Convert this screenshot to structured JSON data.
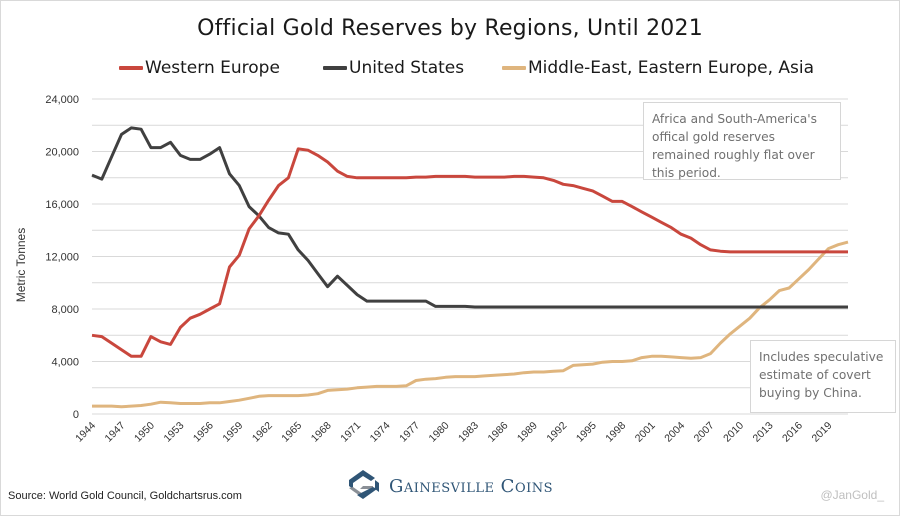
{
  "chart_data": {
    "type": "line",
    "title": "Official Gold Reserves by Regions, Until 2021",
    "xlabel": "",
    "ylabel": "Metric Tonnes",
    "ylim": [
      0,
      24000
    ],
    "yticks": [
      0,
      4000,
      8000,
      12000,
      16000,
      20000,
      24000
    ],
    "ytick_labels": [
      "0",
      "4,000",
      "8,000",
      "12,000",
      "16,000",
      "20,000",
      "24,000"
    ],
    "xlim": [
      1944,
      2021
    ],
    "xtick_labels": [
      "1944",
      "1947",
      "1950",
      "1953",
      "1956",
      "1959",
      "1962",
      "1965",
      "1968",
      "1971",
      "1974",
      "1977",
      "1980",
      "1983",
      "1986",
      "1989",
      "1992",
      "1995",
      "1998",
      "2001",
      "2004",
      "2007",
      "2010",
      "2013",
      "2016",
      "2019"
    ],
    "grid": true,
    "legend_position": "top",
    "series": [
      {
        "name": "Western Europe",
        "color": "#c9473d",
        "x": [
          1944,
          1945,
          1946,
          1947,
          1948,
          1949,
          1950,
          1951,
          1952,
          1953,
          1954,
          1955,
          1956,
          1957,
          1958,
          1959,
          1960,
          1961,
          1962,
          1963,
          1964,
          1965,
          1966,
          1967,
          1968,
          1969,
          1970,
          1971,
          1972,
          1973,
          1974,
          1975,
          1976,
          1977,
          1978,
          1979,
          1980,
          1981,
          1982,
          1983,
          1984,
          1985,
          1986,
          1987,
          1988,
          1989,
          1990,
          1991,
          1992,
          1993,
          1994,
          1995,
          1996,
          1997,
          1998,
          1999,
          2000,
          2001,
          2002,
          2003,
          2004,
          2005,
          2006,
          2007,
          2008,
          2009,
          2010,
          2011,
          2012,
          2013,
          2014,
          2015,
          2016,
          2017,
          2018,
          2019,
          2020,
          2021
        ],
        "values": [
          6000,
          5900,
          5400,
          4900,
          4400,
          4400,
          5900,
          5500,
          5300,
          6600,
          7300,
          7600,
          8000,
          8400,
          11200,
          12100,
          14100,
          15100,
          16300,
          17400,
          18000,
          20200,
          20100,
          19700,
          19200,
          18500,
          18100,
          18000,
          18000,
          18000,
          18000,
          18000,
          18000,
          18050,
          18050,
          18100,
          18100,
          18100,
          18100,
          18050,
          18050,
          18050,
          18050,
          18100,
          18100,
          18050,
          18000,
          17800,
          17500,
          17400,
          17200,
          17000,
          16600,
          16200,
          16200,
          15800,
          15400,
          15000,
          14600,
          14200,
          13700,
          13400,
          12900,
          12500,
          12400,
          12350,
          12350,
          12350,
          12350,
          12350,
          12350,
          12350,
          12350,
          12350,
          12350,
          12350,
          12350,
          12350
        ]
      },
      {
        "name": "United States",
        "color": "#404040",
        "x": [
          1944,
          1945,
          1946,
          1947,
          1948,
          1949,
          1950,
          1951,
          1952,
          1953,
          1954,
          1955,
          1956,
          1957,
          1958,
          1959,
          1960,
          1961,
          1962,
          1963,
          1964,
          1965,
          1966,
          1967,
          1968,
          1969,
          1970,
          1971,
          1972,
          1973,
          1974,
          1975,
          1976,
          1977,
          1978,
          1979,
          1980,
          1981,
          1982,
          1983,
          1984,
          1985,
          1986,
          1987,
          1988,
          1989,
          1990,
          1991,
          1992,
          1993,
          1994,
          1995,
          1996,
          1997,
          1998,
          1999,
          2000,
          2001,
          2002,
          2003,
          2004,
          2005,
          2006,
          2007,
          2008,
          2009,
          2010,
          2011,
          2012,
          2013,
          2014,
          2015,
          2016,
          2017,
          2018,
          2019,
          2020,
          2021
        ],
        "values": [
          18200,
          17900,
          19600,
          21300,
          21800,
          21700,
          20300,
          20300,
          20700,
          19700,
          19400,
          19400,
          19800,
          20300,
          18300,
          17400,
          15800,
          15100,
          14200,
          13800,
          13700,
          12500,
          11700,
          10700,
          9700,
          10500,
          9800,
          9100,
          8600,
          8600,
          8600,
          8600,
          8600,
          8600,
          8600,
          8200,
          8200,
          8200,
          8200,
          8150,
          8150,
          8150,
          8150,
          8150,
          8150,
          8150,
          8150,
          8150,
          8150,
          8150,
          8150,
          8150,
          8150,
          8150,
          8150,
          8150,
          8150,
          8150,
          8150,
          8150,
          8150,
          8150,
          8150,
          8150,
          8150,
          8150,
          8150,
          8150,
          8150,
          8150,
          8150,
          8150,
          8150,
          8150,
          8150,
          8150,
          8150,
          8150
        ]
      },
      {
        "name": "Middle-East, Eastern Europe, Asia",
        "color": "#dfb57e",
        "x": [
          1944,
          1945,
          1946,
          1947,
          1948,
          1949,
          1950,
          1951,
          1952,
          1953,
          1954,
          1955,
          1956,
          1957,
          1958,
          1959,
          1960,
          1961,
          1962,
          1963,
          1964,
          1965,
          1966,
          1967,
          1968,
          1969,
          1970,
          1971,
          1972,
          1973,
          1974,
          1975,
          1976,
          1977,
          1978,
          1979,
          1980,
          1981,
          1982,
          1983,
          1984,
          1985,
          1986,
          1987,
          1988,
          1989,
          1990,
          1991,
          1992,
          1993,
          1994,
          1995,
          1996,
          1997,
          1998,
          1999,
          2000,
          2001,
          2002,
          2003,
          2004,
          2005,
          2006,
          2007,
          2008,
          2009,
          2010,
          2011,
          2012,
          2013,
          2014,
          2015,
          2016,
          2017,
          2018,
          2019,
          2020,
          2021
        ],
        "values": [
          600,
          600,
          600,
          550,
          600,
          650,
          750,
          900,
          850,
          800,
          800,
          800,
          850,
          850,
          950,
          1050,
          1200,
          1350,
          1400,
          1400,
          1400,
          1400,
          1450,
          1550,
          1800,
          1850,
          1900,
          2000,
          2050,
          2100,
          2100,
          2100,
          2150,
          2550,
          2650,
          2700,
          2800,
          2850,
          2850,
          2850,
          2900,
          2950,
          3000,
          3050,
          3150,
          3200,
          3200,
          3250,
          3300,
          3700,
          3750,
          3800,
          3950,
          4000,
          4000,
          4050,
          4300,
          4400,
          4400,
          4350,
          4300,
          4250,
          4300,
          4600,
          5400,
          6100,
          6700,
          7300,
          8100,
          8700,
          9400,
          9600,
          10300,
          11000,
          11800,
          12600,
          12900,
          13100
        ]
      }
    ],
    "annotations": [
      "Africa and South-America's offical gold reserves remained roughly flat over this period.",
      "Includes speculative estimate of covert buying by China."
    ]
  },
  "footer": {
    "source": "Source: World Gold Council, Goldchartsrus.com",
    "brand": "Gainesville Coins",
    "handle": "@JanGold_"
  },
  "icons": {
    "brand_logo": "gainesville-coins-logo-icon"
  },
  "colors": {
    "western_europe": "#c9473d",
    "united_states": "#404040",
    "asia": "#dfb57e",
    "brand": "#2f5576",
    "grid": "#d9d9d9"
  }
}
